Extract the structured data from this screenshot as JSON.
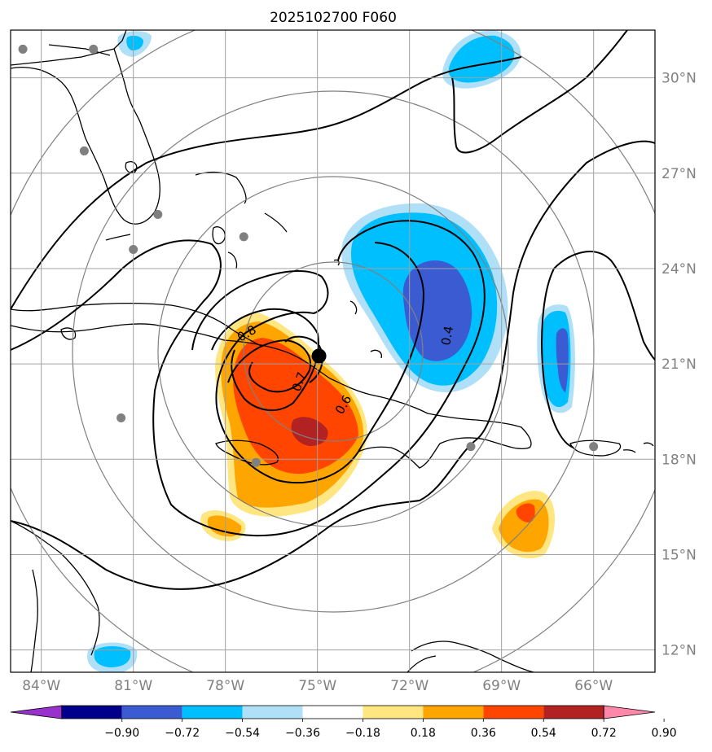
{
  "title": "2025102700 F060",
  "map": {
    "lon_range": [
      -85,
      -64
    ],
    "lat_range": [
      11.3,
      31.5
    ],
    "lon_labels": [
      "84°W",
      "81°W",
      "78°W",
      "75°W",
      "72°W",
      "69°W",
      "66°W"
    ],
    "lat_labels": [
      "30°N",
      "27°N",
      "24°N",
      "21°N",
      "18°N",
      "15°N",
      "12°N"
    ],
    "center_marker": {
      "lon": -74.95,
      "lat": 21.25
    },
    "contour_labels": [
      "0.4",
      "0.6",
      "0.7",
      "0.8"
    ],
    "station_points": [
      {
        "lon": -84.6,
        "lat": 30.9
      },
      {
        "lon": -82.3,
        "lat": 30.9
      },
      {
        "lon": -82.6,
        "lat": 27.7
      },
      {
        "lon": -80.2,
        "lat": 25.7
      },
      {
        "lon": -81.0,
        "lat": 24.6
      },
      {
        "lon": -77.4,
        "lat": 25.0
      },
      {
        "lon": -81.4,
        "lat": 19.3
      },
      {
        "lon": -77.0,
        "lat": 17.9
      },
      {
        "lon": -70.0,
        "lat": 18.4
      },
      {
        "lon": -66.0,
        "lat": 18.4
      }
    ]
  },
  "colorbar": {
    "tick_labels": [
      "−0.90",
      "−0.72",
      "−0.54",
      "−0.36",
      "−0.18",
      "0.18",
      "0.36",
      "0.54",
      "0.72",
      "0.90"
    ],
    "colors": [
      "#9932cc",
      "#00008b",
      "#3b5bd3",
      "#00bfff",
      "#b0e0f8",
      "#ffffff",
      "#ffe680",
      "#ffa500",
      "#ff4500",
      "#b22222",
      "#ff88aa"
    ]
  }
}
